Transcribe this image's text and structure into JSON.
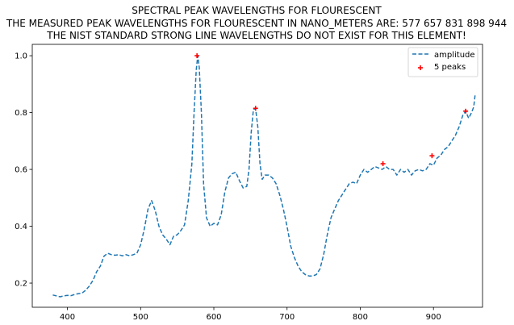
{
  "chart_data": {
    "type": "line",
    "title_lines": [
      "SPECTRAL PEAK WAVELENGTHS FOR FLOURESCENT",
      "THE MEASURED PEAK WAVELENGTHS FOR FLOURESCENT IN NANO_METERS ARE: 577 657 831 898 944",
      "THE NIST STANDARD STRONG LINE WAVELENGTHS DO NOT EXIST FOR THIS ELEMENT!"
    ],
    "xlabel": "",
    "ylabel": "",
    "xlim": [
      352,
      967
    ],
    "ylim": [
      0.115,
      1.04
    ],
    "x_ticks": [
      400,
      500,
      600,
      700,
      800,
      900
    ],
    "y_ticks": [
      0.2,
      0.4,
      0.6,
      0.8,
      1.0
    ],
    "y_tick_labels": [
      "0.2",
      "0.4",
      "0.6",
      "0.8",
      "1.0"
    ],
    "grid": false,
    "legend_position": "top-right",
    "colors": {
      "line": "#1f77b4",
      "peaks": "#ff0000"
    },
    "series": [
      {
        "name": "amplitude",
        "style": "dashed",
        "x": [
          380,
          385,
          390,
          395,
          400,
          405,
          410,
          415,
          420,
          425,
          430,
          435,
          440,
          445,
          450,
          455,
          460,
          465,
          470,
          475,
          480,
          485,
          490,
          495,
          500,
          505,
          510,
          515,
          520,
          525,
          530,
          535,
          540,
          545,
          550,
          555,
          560,
          565,
          570,
          573,
          576,
          578,
          580,
          583,
          586,
          590,
          595,
          600,
          605,
          610,
          615,
          620,
          625,
          630,
          635,
          640,
          645,
          648,
          651,
          654,
          657,
          660,
          663,
          666,
          670,
          675,
          680,
          685,
          690,
          695,
          700,
          705,
          710,
          715,
          720,
          725,
          730,
          735,
          740,
          745,
          750,
          755,
          760,
          765,
          770,
          775,
          780,
          785,
          790,
          795,
          800,
          805,
          810,
          815,
          820,
          825,
          830,
          835,
          840,
          845,
          850,
          855,
          860,
          865,
          870,
          875,
          880,
          885,
          890,
          895,
          900,
          905,
          910,
          915,
          920,
          925,
          930,
          935,
          940,
          944,
          948,
          952,
          955,
          957
        ],
        "values": [
          0.158,
          0.155,
          0.152,
          0.155,
          0.157,
          0.156,
          0.16,
          0.163,
          0.165,
          0.175,
          0.19,
          0.21,
          0.24,
          0.26,
          0.295,
          0.305,
          0.3,
          0.298,
          0.3,
          0.296,
          0.3,
          0.296,
          0.3,
          0.305,
          0.335,
          0.39,
          0.46,
          0.49,
          0.455,
          0.4,
          0.37,
          0.355,
          0.335,
          0.365,
          0.37,
          0.385,
          0.405,
          0.49,
          0.62,
          0.8,
          0.95,
          1.0,
          0.96,
          0.8,
          0.55,
          0.43,
          0.4,
          0.41,
          0.405,
          0.44,
          0.52,
          0.57,
          0.585,
          0.59,
          0.56,
          0.535,
          0.54,
          0.6,
          0.73,
          0.81,
          0.815,
          0.75,
          0.62,
          0.565,
          0.58,
          0.58,
          0.57,
          0.55,
          0.51,
          0.46,
          0.4,
          0.33,
          0.29,
          0.26,
          0.24,
          0.23,
          0.225,
          0.225,
          0.23,
          0.25,
          0.3,
          0.37,
          0.43,
          0.46,
          0.49,
          0.51,
          0.53,
          0.55,
          0.555,
          0.55,
          0.58,
          0.6,
          0.59,
          0.6,
          0.61,
          0.605,
          0.6,
          0.61,
          0.6,
          0.6,
          0.58,
          0.6,
          0.59,
          0.6,
          0.58,
          0.595,
          0.6,
          0.595,
          0.6,
          0.62,
          0.615,
          0.64,
          0.65,
          0.67,
          0.68,
          0.7,
          0.72,
          0.75,
          0.79,
          0.805,
          0.78,
          0.8,
          0.82,
          0.865
        ]
      },
      {
        "name": "5 peaks",
        "style": "markers",
        "x": [
          577,
          657,
          831,
          898,
          944
        ],
        "values": [
          1.0,
          0.815,
          0.62,
          0.648,
          0.805
        ]
      }
    ]
  }
}
